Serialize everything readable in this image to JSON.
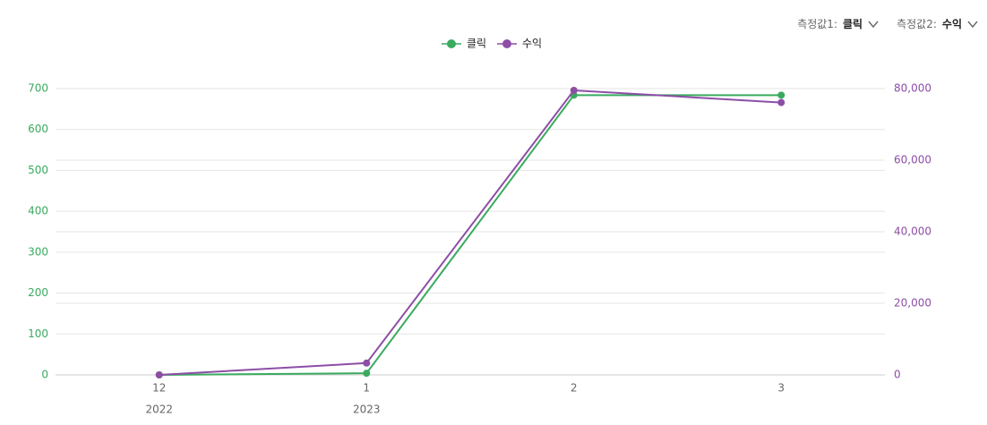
{
  "controls": {
    "metric1": {
      "label": "측정값1:",
      "value": "클릭",
      "icon": "chevron-down-icon"
    },
    "metric2": {
      "label": "측정값2:",
      "value": "수익",
      "icon": "chevron-down-icon"
    }
  },
  "chart_data": {
    "type": "line",
    "x": [
      "12",
      "1",
      "2",
      "3"
    ],
    "x_year_labels": [
      "2022",
      "2023",
      "",
      ""
    ],
    "series": [
      {
        "name": "클릭",
        "axis": "left",
        "color": "#3aaa5f",
        "values": [
          0,
          4,
          684,
          684
        ]
      },
      {
        "name": "수익",
        "axis": "right",
        "color": "#8d4ea6",
        "values": [
          0,
          3300,
          79500,
          76100
        ]
      }
    ],
    "left_axis": {
      "ylim": [
        0,
        700
      ],
      "ticks": [
        "0",
        "100",
        "200",
        "300",
        "400",
        "500",
        "600",
        "700"
      ],
      "ytick_values": [
        0,
        100,
        200,
        300,
        400,
        500,
        600,
        700
      ]
    },
    "right_axis": {
      "ylim": [
        0,
        80000
      ],
      "ticks": [
        "0",
        "20,000",
        "40,000",
        "60,000",
        "80,000"
      ],
      "ytick_values": [
        0,
        20000,
        40000,
        60000,
        80000
      ]
    },
    "legend_position": "top-center",
    "grid": true
  }
}
